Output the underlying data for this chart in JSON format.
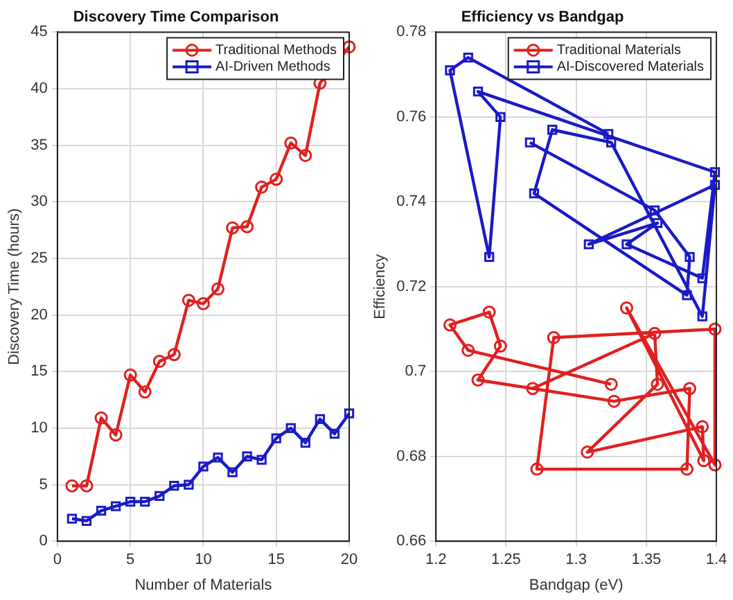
{
  "chart_data": [
    {
      "type": "line",
      "title": "Discovery Time Comparison",
      "xlabel": "Number of Materials",
      "ylabel": "Discovery Time (hours)",
      "x": [
        1,
        2,
        3,
        4,
        5,
        6,
        7,
        8,
        9,
        10,
        11,
        12,
        13,
        14,
        15,
        16,
        17,
        18,
        19,
        20
      ],
      "xlim": [
        0,
        20
      ],
      "xticks": [
        0,
        5,
        10,
        15,
        20
      ],
      "ylim": [
        0,
        45
      ],
      "yticks": [
        0,
        5,
        10,
        15,
        20,
        25,
        30,
        35,
        40,
        45
      ],
      "grid": true,
      "legend": "top right",
      "series": [
        {
          "name": "Traditional Methods",
          "color": "#e02020",
          "marker": "circle",
          "values": [
            4.9,
            4.9,
            10.9,
            9.4,
            14.7,
            13.2,
            15.9,
            16.5,
            21.3,
            21.0,
            22.3,
            27.7,
            27.8,
            31.3,
            32.0,
            35.2,
            34.1,
            40.5,
            null,
            43.7
          ]
        },
        {
          "name": "AI-Driven Methods",
          "color": "#1a1ac8",
          "marker": "square",
          "values": [
            2.0,
            1.8,
            2.7,
            3.1,
            3.5,
            3.5,
            4.0,
            4.9,
            5.0,
            6.6,
            7.4,
            6.1,
            7.5,
            7.2,
            9.1,
            10.0,
            8.7,
            10.8,
            9.5,
            11.3
          ]
        }
      ]
    },
    {
      "type": "line",
      "title": "Efficiency vs Bandgap",
      "xlabel": "Bandgap (eV)",
      "ylabel": "Efficiency",
      "xlim": [
        1.2,
        1.4
      ],
      "xticks": [
        1.2,
        1.25,
        1.3,
        1.35,
        1.4
      ],
      "ylim": [
        0.66,
        0.78
      ],
      "yticks": [
        0.66,
        0.68,
        0.7,
        0.72,
        0.74,
        0.76,
        0.78
      ],
      "grid": true,
      "legend": "top right",
      "series": [
        {
          "name": "Traditional Materials",
          "color": "#e02020",
          "marker": "circle",
          "x": [
            1.325,
            1.223,
            1.21,
            1.238,
            1.246,
            1.23,
            1.327,
            1.381,
            1.379,
            1.272,
            1.284,
            1.399,
            1.399,
            1.336,
            1.391,
            1.39,
            1.308,
            1.358,
            1.356,
            1.269
          ],
          "values": [
            0.697,
            0.705,
            0.711,
            0.714,
            0.706,
            0.698,
            0.693,
            0.696,
            0.677,
            0.677,
            0.708,
            0.71,
            0.678,
            0.715,
            0.679,
            0.687,
            0.681,
            0.697,
            0.709,
            0.696
          ]
        },
        {
          "name": "AI-Discovered Materials",
          "color": "#1a1ac8",
          "marker": "square",
          "x": [
            1.267,
            1.356,
            1.381,
            1.379,
            1.27,
            1.283,
            1.325,
            1.39,
            1.399,
            1.309,
            1.358,
            1.336,
            1.39,
            1.399,
            1.23,
            1.246,
            1.238,
            1.21,
            1.223,
            1.323
          ],
          "values": [
            0.754,
            0.738,
            0.727,
            0.718,
            0.742,
            0.757,
            0.754,
            0.713,
            0.744,
            0.73,
            0.735,
            0.73,
            0.722,
            0.747,
            0.766,
            0.76,
            0.727,
            0.771,
            0.774,
            0.756
          ]
        }
      ]
    }
  ]
}
